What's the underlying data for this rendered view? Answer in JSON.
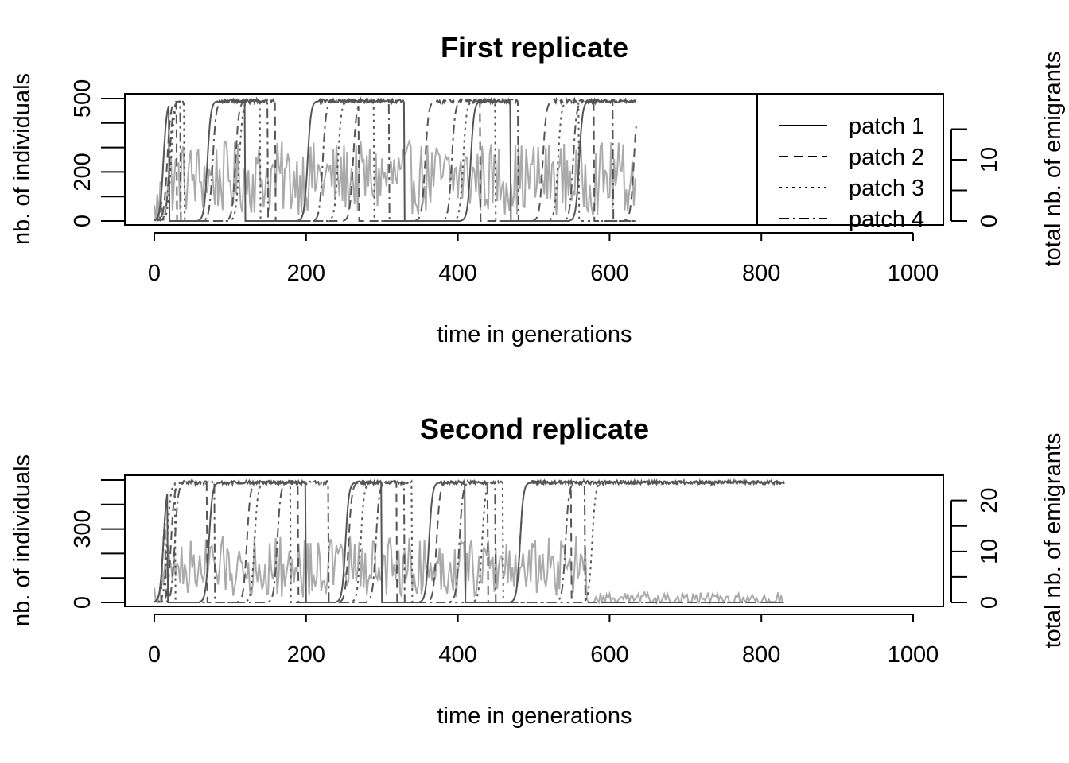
{
  "chart_data": [
    {
      "type": "line",
      "title": "First replicate",
      "xlabel": "time in generations",
      "ylabel": "nb. of individuals",
      "y2label": "total nb. of emigrants",
      "xlim": [
        0,
        1000
      ],
      "ylim": [
        0,
        500
      ],
      "y2lim": [
        0,
        20
      ],
      "x_ticks": [
        "0",
        "200",
        "400",
        "600",
        "800",
        "1000"
      ],
      "y_ticks": [
        "0",
        "200",
        "500"
      ],
      "y_ticks_minor": [
        100,
        300,
        400
      ],
      "y2_ticks": [
        "0",
        "10"
      ],
      "y2_ticks_minor": [
        5,
        15
      ],
      "legend": [
        "patch 1",
        "patch 2",
        "patch 3",
        "patch 4"
      ],
      "legend_position": "top-right",
      "carrying_capacity": 490,
      "t_end": 635,
      "patch_colonization_times": [
        [
          0,
          20,
          58,
          120,
          190,
          330,
          405,
          470,
          548
        ],
        [
          5,
          30,
          95,
          160,
          250,
          270,
          345,
          430,
          500,
          580,
          620
        ],
        [
          10,
          40,
          100,
          140,
          230,
          290,
          395,
          450,
          520,
          560
        ],
        [
          8,
          35,
          65,
          150,
          210,
          310,
          380,
          480,
          540,
          605
        ]
      ],
      "emigrants_mean": 7,
      "colors": {
        "patch": "#555555",
        "emigrants": "#aaaaaa",
        "axis": "#000000"
      }
    },
    {
      "type": "line",
      "title": "Second replicate",
      "xlabel": "time in generations",
      "ylabel": "nb. of individuals",
      "y2label": "total nb. of emigrants",
      "xlim": [
        0,
        1000
      ],
      "ylim": [
        0,
        500
      ],
      "y2lim": [
        0,
        24
      ],
      "x_ticks": [
        "0",
        "200",
        "400",
        "600",
        "800",
        "1000"
      ],
      "y_ticks": [
        "0",
        "300"
      ],
      "y_ticks_minor": [
        100,
        200,
        400,
        500
      ],
      "y2_ticks": [
        "0",
        "10",
        "20"
      ],
      "y2_ticks_minor": [
        5,
        15
      ],
      "carrying_capacity": 490,
      "t_end": 830,
      "patch_colonization_times": [
        [
          0,
          18,
          60,
          200,
          240,
          300,
          350,
          410,
          470
        ],
        [
          10,
          70,
          110,
          190,
          244,
          320,
          360,
          440,
          470,
          550
        ],
        [
          5,
          28,
          120,
          180,
          260,
          340,
          420,
          460,
          565
        ],
        [
          15,
          80,
          150,
          230,
          280,
          330,
          390,
          450,
          530,
          568
        ]
      ],
      "emigrants_mean": 7,
      "colors": {
        "patch": "#555555",
        "emigrants": "#aaaaaa",
        "axis": "#000000"
      }
    }
  ]
}
